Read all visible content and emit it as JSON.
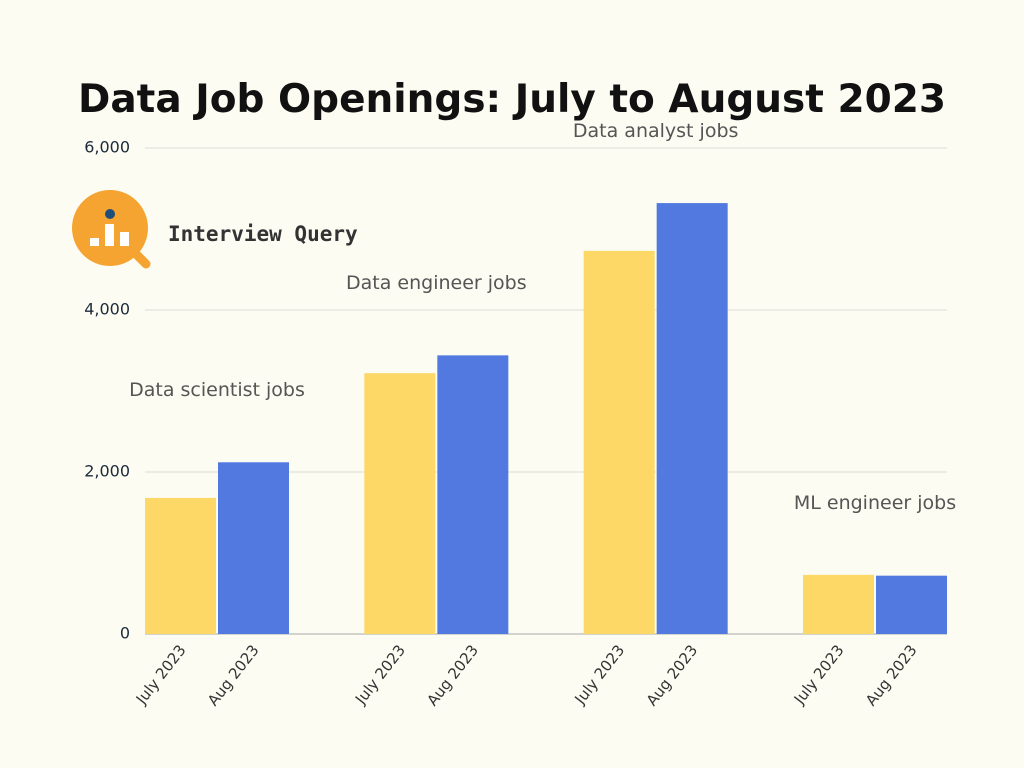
{
  "chart_data": {
    "type": "grouped-bar",
    "title": "Data Job Openings: July to August 2023",
    "logo_text": "Interview Query",
    "categories": [
      "Data scientist jobs",
      "Data engineer jobs",
      "Data analyst jobs",
      "ML engineer jobs"
    ],
    "series": [
      {
        "name": "July 2023",
        "color": "#fdd866",
        "values": [
          1680,
          3220,
          4730,
          730
        ]
      },
      {
        "name": "Aug 2023",
        "color": "#5279e0",
        "values": [
          2120,
          3440,
          5320,
          720
        ]
      }
    ],
    "ylim": [
      0,
      6000
    ],
    "yticks": [
      0,
      {
        "value": 2000,
        "label": "2,000"
      },
      {
        "value": 4000,
        "label": "4,000"
      },
      {
        "value": 6000,
        "label": "6,000"
      }
    ],
    "grid": true
  }
}
